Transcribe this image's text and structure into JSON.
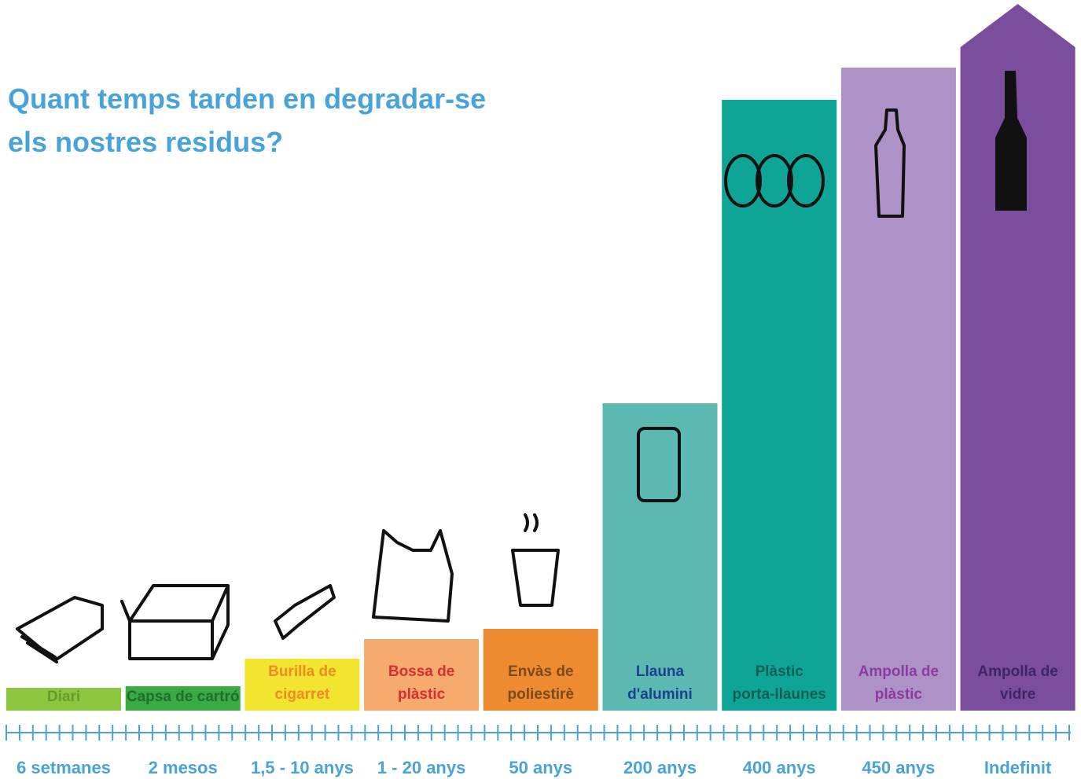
{
  "title": [
    "Quant temps tarden en degradar-se",
    "els nostres residus?"
  ],
  "items": [
    {
      "label": [
        "Diari"
      ],
      "duration": "6 setmanes",
      "color": "#8cc63f",
      "text_color": "#5f9e2a"
    },
    {
      "label": [
        "Capsa de cartró"
      ],
      "duration": "2 mesos",
      "color": "#3aaa45",
      "text_color": "#1f6e2a"
    },
    {
      "label": [
        "Burilla de",
        "cigarret"
      ],
      "duration": "1,5 - 10 anys",
      "color": "#f2e530",
      "text_color": "#ef8a24"
    },
    {
      "label": [
        "Bossa de",
        "plàstic"
      ],
      "duration": "1 - 20 anys",
      "color": "#f6aa6e",
      "text_color": "#d62e33"
    },
    {
      "label": [
        "Envàs de",
        "poliestirè"
      ],
      "duration": "50 anys",
      "color": "#ee8a2f",
      "text_color": "#7b4a1e"
    },
    {
      "label": [
        "Llauna",
        "d'alumini"
      ],
      "duration": "200 anys",
      "color": "#5bb9b2",
      "text_color": "#1d3f8f"
    },
    {
      "label": [
        "Plàstic",
        "porta-llaunes"
      ],
      "duration": "400 anys",
      "color": "#0ea596",
      "text_color": "#0b5e55"
    },
    {
      "label": [
        "Ampolla de",
        "plàstic"
      ],
      "duration": "450 anys",
      "color": "#ac92c6",
      "text_color": "#8e3aa0"
    },
    {
      "label": [
        "Ampolla de",
        "vidre"
      ],
      "duration": "Indefinit",
      "color": "#7a4e9c",
      "text_color": "#3f2466"
    }
  ],
  "accent": "#4aa3d8"
}
